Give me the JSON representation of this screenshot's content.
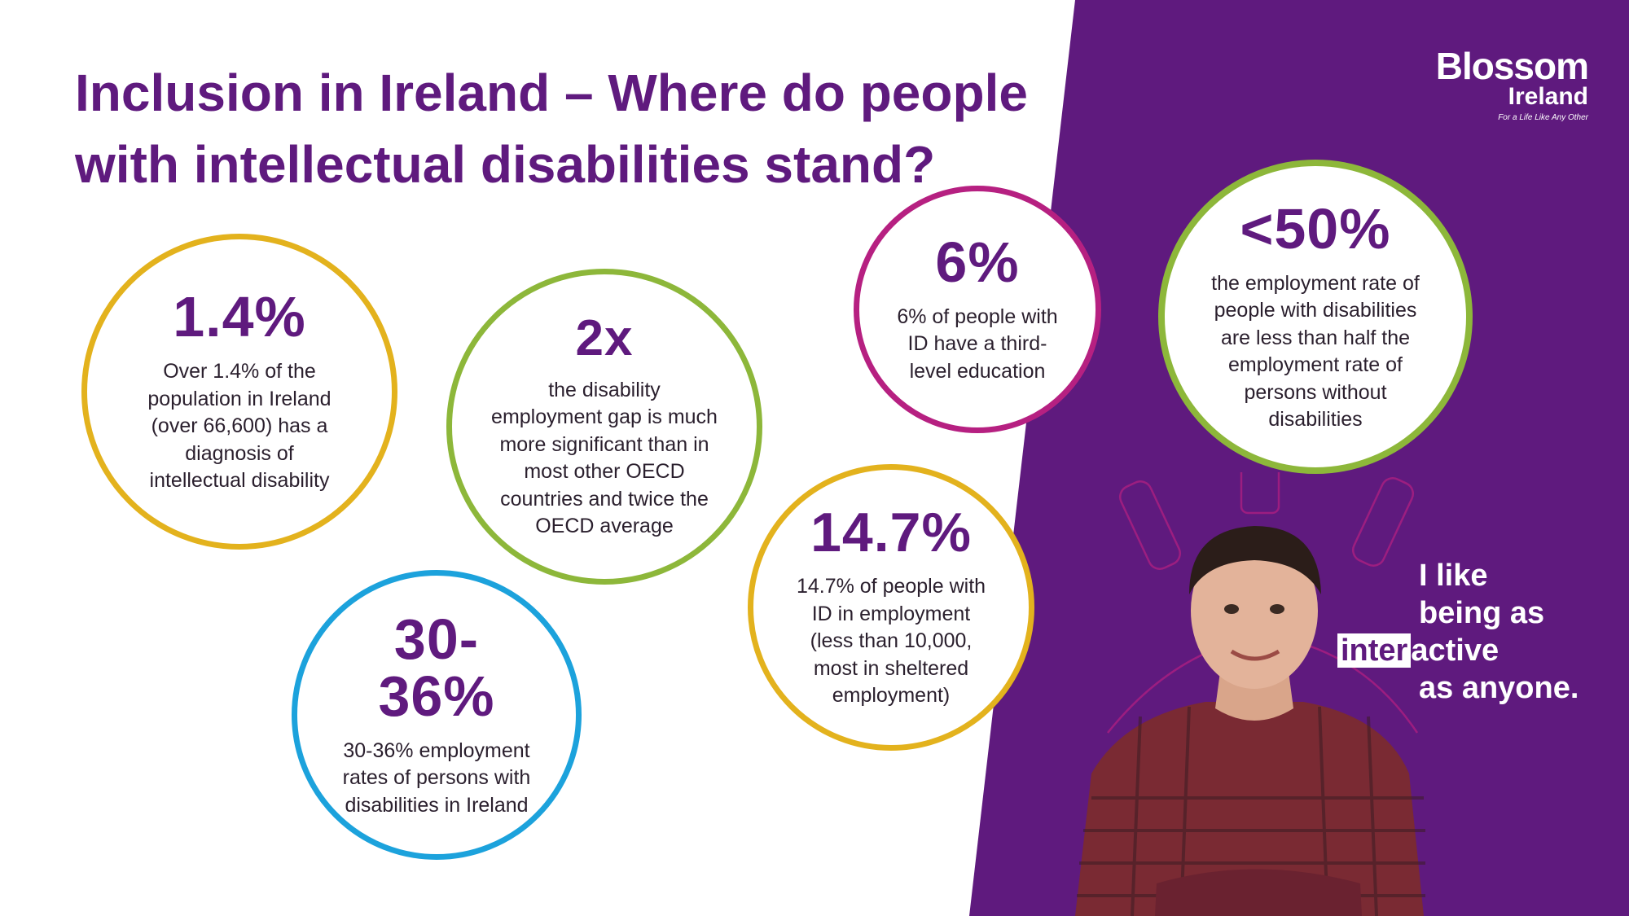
{
  "headline": {
    "line1": "Inclusion in Ireland – Where do people",
    "line2": "with intellectual disabilities stand?"
  },
  "logo": {
    "word1": "Blossom",
    "word2": "Ireland",
    "tagline": "For a Life Like Any Other"
  },
  "stats": [
    {
      "value": "1.4%",
      "description": "Over 1.4% of the population in Ireland (over 66,600) has a diagnosis of intellectual disability",
      "color": "#e3b21d"
    },
    {
      "value": "2x",
      "description": "the disability employment gap is much more significant than in most other OECD countries and twice the OECD average",
      "color": "#8db73a"
    },
    {
      "value": "6%",
      "description": "6% of people with ID have a third-level education",
      "color": "#b62081"
    },
    {
      "value": "<50%",
      "description": "the employment rate of people with disabilities are less than half the employment rate of persons without disabilities",
      "color": "#8db73a"
    },
    {
      "value": "14.7%",
      "description": "14.7% of people with ID in employment (less than 10,000, most in sheltered employment)",
      "color": "#e3b21d"
    },
    {
      "value": "30-36%",
      "description": "30-36% employment rates of persons with disabilities in Ireland",
      "color": "#1ca2dc"
    }
  ],
  "quote": {
    "line1": "I like",
    "line2": "being as",
    "highlight": "inter",
    "line3_rest": "active",
    "line4": "as anyone."
  },
  "colors": {
    "brand_purple": "#5f1a7e",
    "white": "#ffffff"
  }
}
